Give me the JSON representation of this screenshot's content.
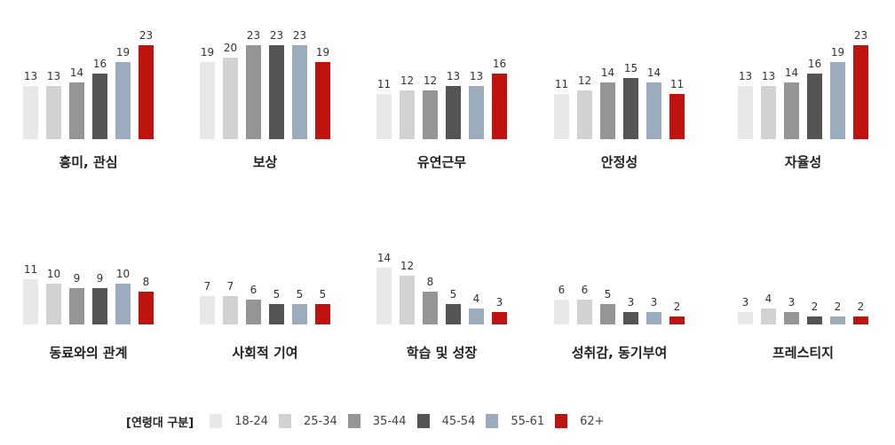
{
  "legend": {
    "title": "[연령대 구분]",
    "groups": [
      "18-24",
      "25-34",
      "35-44",
      "45-54",
      "55-61",
      "62+"
    ]
  },
  "colors": [
    "#e8e8e8",
    "#d2d2d2",
    "#959595",
    "#545454",
    "#9aacbd",
    "#c0120f"
  ],
  "chart_data": [
    {
      "type": "bar",
      "title": "흥미, 관심",
      "categories": [
        "18-24",
        "25-34",
        "35-44",
        "45-54",
        "55-61",
        "62+"
      ],
      "values": [
        13,
        13,
        14,
        16,
        19,
        23
      ]
    },
    {
      "type": "bar",
      "title": "보상",
      "categories": [
        "18-24",
        "25-34",
        "35-44",
        "45-54",
        "55-61",
        "62+"
      ],
      "values": [
        19,
        20,
        23,
        23,
        23,
        19
      ]
    },
    {
      "type": "bar",
      "title": "유연근무",
      "categories": [
        "18-24",
        "25-34",
        "35-44",
        "45-54",
        "55-61",
        "62+"
      ],
      "values": [
        11,
        12,
        12,
        13,
        13,
        16
      ]
    },
    {
      "type": "bar",
      "title": "안정성",
      "categories": [
        "18-24",
        "25-34",
        "35-44",
        "45-54",
        "55-61",
        "62+"
      ],
      "values": [
        11,
        12,
        14,
        15,
        14,
        11
      ]
    },
    {
      "type": "bar",
      "title": "자율성",
      "categories": [
        "18-24",
        "25-34",
        "35-44",
        "45-54",
        "55-61",
        "62+"
      ],
      "values": [
        13,
        13,
        14,
        16,
        19,
        23
      ]
    },
    {
      "type": "bar",
      "title": "동료와의 관계",
      "categories": [
        "18-24",
        "25-34",
        "35-44",
        "45-54",
        "55-61",
        "62+"
      ],
      "values": [
        11,
        10,
        9,
        9,
        10,
        8
      ]
    },
    {
      "type": "bar",
      "title": "사회적 기여",
      "categories": [
        "18-24",
        "25-34",
        "35-44",
        "45-54",
        "55-61",
        "62+"
      ],
      "values": [
        7,
        7,
        6,
        5,
        5,
        5
      ]
    },
    {
      "type": "bar",
      "title": "학습 및 성장",
      "categories": [
        "18-24",
        "25-34",
        "35-44",
        "45-54",
        "55-61",
        "62+"
      ],
      "values": [
        14,
        12,
        8,
        5,
        4,
        3
      ]
    },
    {
      "type": "bar",
      "title": "성취감, 동기부여",
      "categories": [
        "18-24",
        "25-34",
        "35-44",
        "45-54",
        "55-61",
        "62+"
      ],
      "values": [
        6,
        6,
        5,
        3,
        3,
        2
      ]
    },
    {
      "type": "bar",
      "title": "프레스티지",
      "categories": [
        "18-24",
        "25-34",
        "35-44",
        "45-54",
        "55-61",
        "62+"
      ],
      "values": [
        3,
        4,
        3,
        2,
        2,
        2
      ]
    }
  ]
}
